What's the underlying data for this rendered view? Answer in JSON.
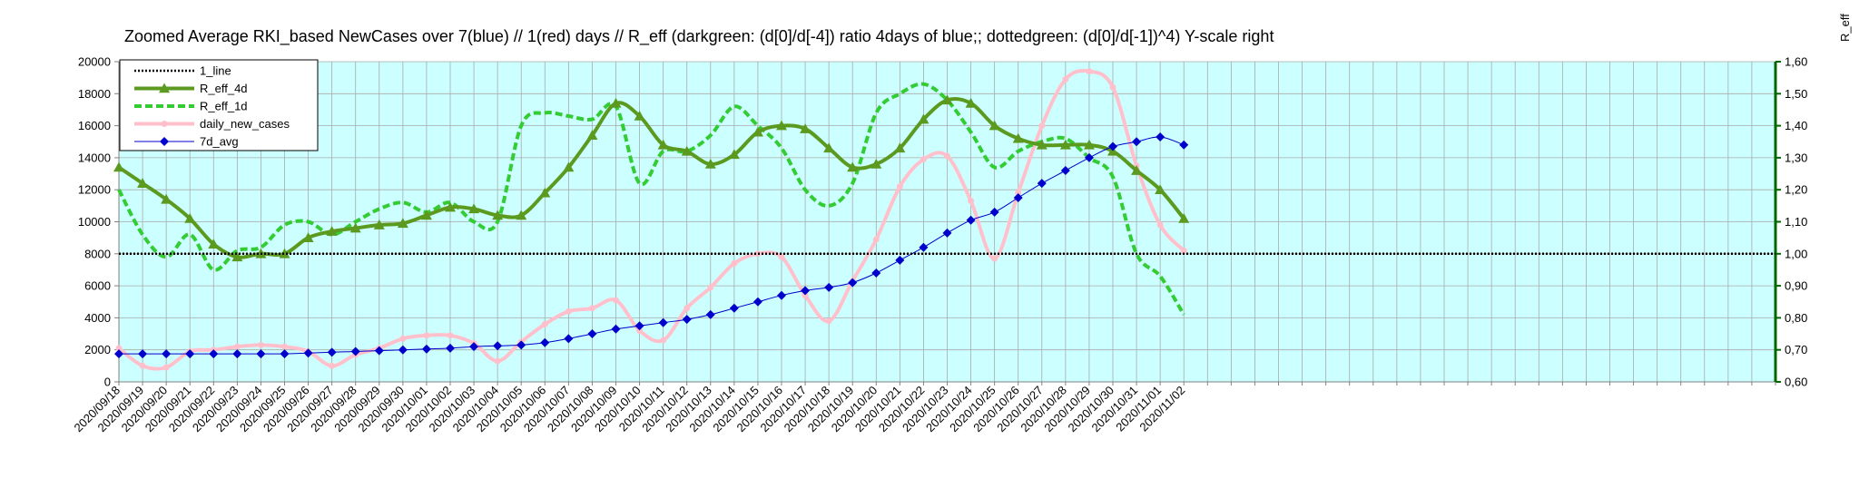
{
  "chart_data": {
    "type": "line",
    "title": "Zoomed Average RKI_based NewCases over 7(blue) // 1(red) days //  R_eff (darkgreen: (d[0]/d[-4]) ratio 4days of blue;; dottedgreen: (d[0]/d[-1])^4) Y-scale right",
    "y2label": "R_eff",
    "ylim": [
      0,
      20000
    ],
    "y_ticks": [
      "0",
      "2000",
      "4000",
      "6000",
      "8000",
      "10000",
      "12000",
      "14000",
      "16000",
      "18000",
      "20000"
    ],
    "y2lim": [
      0.6,
      1.6
    ],
    "y2_ticks": [
      "0,60",
      "0,70",
      "0,80",
      "0,90",
      "1,00",
      "1,10",
      "1,20",
      "1,30",
      "1,40",
      "1,50",
      "1,60"
    ],
    "x_slots": 70,
    "x_labels": [
      "2020/09/18",
      "2020/09/19",
      "2020/09/20",
      "2020/09/21",
      "2020/09/22",
      "2020/09/23",
      "2020/09/24",
      "2020/09/25",
      "2020/09/26",
      "2020/09/27",
      "2020/09/28",
      "2020/09/29",
      "2020/09/30",
      "2020/10/01",
      "2020/10/02",
      "2020/10/03",
      "2020/10/04",
      "2020/10/05",
      "2020/10/06",
      "2020/10/07",
      "2020/10/08",
      "2020/10/09",
      "2020/10/10",
      "2020/10/11",
      "2020/10/12",
      "2020/10/13",
      "2020/10/14",
      "2020/10/15",
      "2020/10/16",
      "2020/10/17",
      "2020/10/18",
      "2020/10/19",
      "2020/10/20",
      "2020/10/21",
      "2020/10/22",
      "2020/10/23",
      "2020/10/24",
      "2020/10/25",
      "2020/10/26",
      "2020/10/27",
      "2020/10/28",
      "2020/10/29",
      "2020/10/30",
      "2020/10/31",
      "2020/11/01",
      "2020/11/02"
    ],
    "grid": true,
    "legend_position": "top-left",
    "colors": {
      "plot_background": "#ccffff",
      "grid": "#aaaaaa",
      "one_line": "#000000",
      "r_eff_4d": "#5b9a1f",
      "r_eff_1d": "#33cc33",
      "daily_new_cases": "#ffc0cb",
      "avg_7d": "#0000cc",
      "right_axis": "#006600"
    },
    "series": [
      {
        "name": "1_line",
        "key": "one_line",
        "axis": "right",
        "style": "dotted",
        "values": [
          1,
          1,
          1,
          1,
          1,
          1,
          1,
          1,
          1,
          1,
          1,
          1,
          1,
          1,
          1,
          1,
          1,
          1,
          1,
          1,
          1,
          1,
          1,
          1,
          1,
          1,
          1,
          1,
          1,
          1,
          1,
          1,
          1,
          1,
          1,
          1,
          1,
          1,
          1,
          1,
          1,
          1,
          1,
          1,
          1,
          1,
          1,
          1,
          1,
          1,
          1,
          1,
          1,
          1,
          1,
          1,
          1,
          1,
          1,
          1,
          1,
          1,
          1,
          1,
          1,
          1,
          1,
          1,
          1,
          1
        ]
      },
      {
        "name": "R_eff_4d",
        "key": "r_eff_4d",
        "axis": "right",
        "style": "solid-triangle",
        "values": [
          1.27,
          1.22,
          1.17,
          1.11,
          1.03,
          0.99,
          1.0,
          1.0,
          1.05,
          1.07,
          1.08,
          1.09,
          1.095,
          1.12,
          1.145,
          1.14,
          1.12,
          1.12,
          1.19,
          1.27,
          1.37,
          1.47,
          1.43,
          1.34,
          1.32,
          1.28,
          1.31,
          1.38,
          1.4,
          1.39,
          1.33,
          1.27,
          1.28,
          1.33,
          1.42,
          1.48,
          1.47,
          1.4,
          1.36,
          1.34,
          1.34,
          1.34,
          1.32,
          1.26,
          1.2,
          1.11
        ]
      },
      {
        "name": "R_eff_1d",
        "key": "r_eff_1d",
        "axis": "right",
        "style": "dashed",
        "values": [
          1.2,
          1.06,
          0.99,
          1.06,
          0.95,
          1.01,
          1.02,
          1.09,
          1.1,
          1.06,
          1.1,
          1.14,
          1.16,
          1.13,
          1.16,
          1.1,
          1.1,
          1.4,
          1.44,
          1.43,
          1.42,
          1.46,
          1.22,
          1.32,
          1.32,
          1.37,
          1.46,
          1.4,
          1.33,
          1.2,
          1.15,
          1.22,
          1.44,
          1.5,
          1.53,
          1.48,
          1.38,
          1.27,
          1.32,
          1.35,
          1.36,
          1.3,
          1.24,
          1.0,
          0.93,
          0.81
        ]
      },
      {
        "name": "daily_new_cases",
        "key": "daily_new_cases",
        "axis": "left",
        "style": "thick-solid",
        "values": [
          2100,
          1000,
          900,
          1900,
          2000,
          2200,
          2300,
          2200,
          1900,
          1000,
          1700,
          2100,
          2700,
          2900,
          2900,
          2400,
          1300,
          2500,
          3600,
          4400,
          4600,
          5100,
          3200,
          2600,
          4600,
          5900,
          7400,
          8000,
          7800,
          5400,
          3800,
          6300,
          8900,
          12200,
          13900,
          14100,
          11300,
          7700,
          11800,
          16000,
          18900,
          19400,
          18400,
          13500,
          9800,
          8200
        ]
      },
      {
        "name": "7d_avg",
        "key": "avg_7d",
        "axis": "left",
        "style": "thin-diamond",
        "values": [
          1750,
          1750,
          1750,
          1750,
          1750,
          1750,
          1750,
          1750,
          1800,
          1850,
          1900,
          1950,
          2000,
          2050,
          2100,
          2200,
          2250,
          2300,
          2450,
          2700,
          3000,
          3300,
          3500,
          3700,
          3900,
          4200,
          4600,
          5000,
          5400,
          5700,
          5900,
          6200,
          6800,
          7600,
          8400,
          9300,
          10100,
          10600,
          11500,
          12400,
          13200,
          14000,
          14700,
          15000,
          15300,
          14800
        ]
      }
    ]
  }
}
